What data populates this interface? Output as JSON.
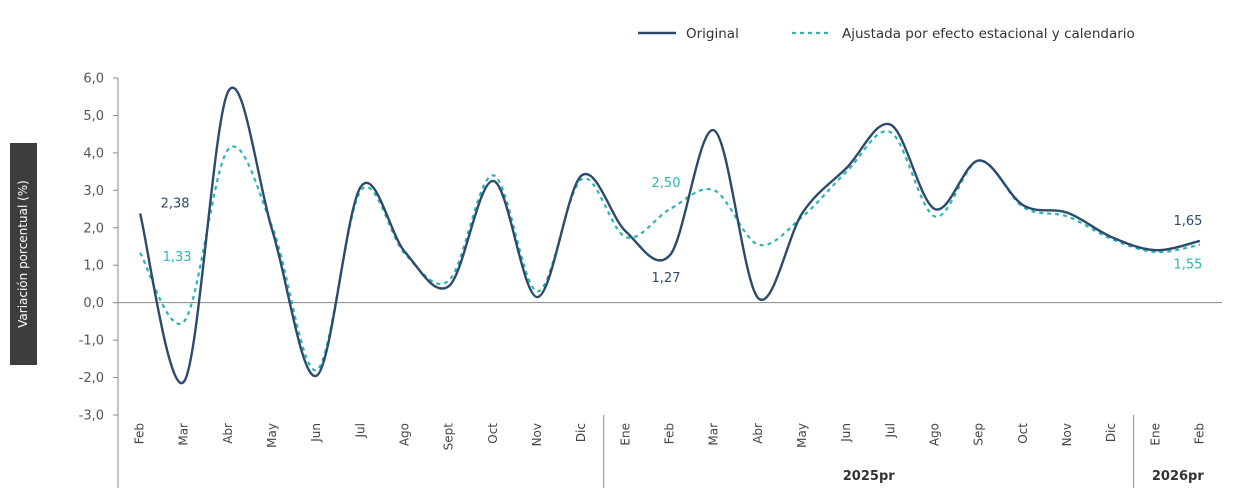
{
  "chart_data": {
    "type": "line",
    "ylabel": "Variación porcentual (%)",
    "ylim": [
      -3.0,
      6.0
    ],
    "yticks": [
      "6,0",
      "5,0",
      "4,0",
      "3,0",
      "2,0",
      "1,0",
      "0,0",
      "-1,0",
      "-2,0",
      "-3,0"
    ],
    "ytick_values": [
      6,
      5,
      4,
      3,
      2,
      1,
      0,
      -1,
      -2,
      -3
    ],
    "categories": [
      "Feb",
      "Mar",
      "Abr",
      "May",
      "Jun",
      "Jul",
      "Ago",
      "Sept",
      "Oct",
      "Nov",
      "Dic",
      "Ene",
      "Feb",
      "Mar",
      "Abr",
      "May",
      "Jun",
      "Jul",
      "Ago",
      "Sep",
      "Oct",
      "Nov",
      "Dic",
      "Ene",
      "Feb"
    ],
    "groups": [
      {
        "label": "",
        "start": 0,
        "end": 10
      },
      {
        "label": "2025pr",
        "start": 11,
        "end": 22
      },
      {
        "label": "2026pr",
        "start": 23,
        "end": 24
      }
    ],
    "series": [
      {
        "name": "Original",
        "color": "#2c4a6b",
        "style": "solid",
        "values": [
          2.38,
          -2.1,
          5.65,
          1.9,
          -1.95,
          3.1,
          1.35,
          0.45,
          3.25,
          0.15,
          3.4,
          1.9,
          1.27,
          4.6,
          0.12,
          2.4,
          3.6,
          4.75,
          2.5,
          3.8,
          2.6,
          2.4,
          1.75,
          1.4,
          1.65
        ]
      },
      {
        "name": "Ajustada por efecto estacional y calendario",
        "color": "#2bb5b5",
        "style": "dashed",
        "values": [
          1.33,
          -0.5,
          4.1,
          2.0,
          -1.8,
          3.0,
          1.3,
          0.6,
          3.4,
          0.3,
          3.3,
          1.75,
          2.5,
          3.0,
          1.55,
          2.3,
          3.5,
          4.55,
          2.3,
          3.8,
          2.55,
          2.3,
          1.7,
          1.35,
          1.55
        ]
      }
    ],
    "annotations": [
      {
        "text": "2,38",
        "series": 0,
        "index": 0,
        "color": "#2c4a6b"
      },
      {
        "text": "1,33",
        "series": 1,
        "index": 0,
        "color": "#2bb5b5"
      },
      {
        "text": "2,50",
        "series": 1,
        "index": 12,
        "color": "#2bb5b5"
      },
      {
        "text": "1,27",
        "series": 0,
        "index": 12,
        "color": "#2c4a6b"
      },
      {
        "text": "1,65",
        "series": 0,
        "index": 24,
        "color": "#2c4a6b"
      },
      {
        "text": "1,55",
        "series": 1,
        "index": 24,
        "color": "#2bb5b5"
      }
    ],
    "legend": [
      "Original",
      "Ajustada por efecto estacional y calendario"
    ],
    "legend_position": "top-right",
    "grid": false
  }
}
